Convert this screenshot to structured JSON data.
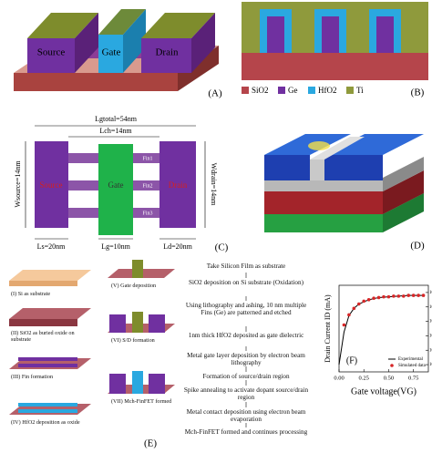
{
  "panels": {
    "A": {
      "label": "(A)",
      "source": "Source",
      "gate": "Gate",
      "drain": "Drain"
    },
    "B": {
      "label": "(B)",
      "legend": [
        "SiO2",
        "Ge",
        "HfO2",
        "Ti"
      ]
    },
    "C": {
      "label": "(C)",
      "total_length": "Lgtotal=54nm",
      "channel_length": "Lch=14nm",
      "source_width": "Wsource=14nm",
      "drain_width": "Wdrain=14nm",
      "source": "Source",
      "gate": "Gate",
      "drain": "Drain",
      "fins": [
        "Fin1",
        "Fin2",
        "Fin3"
      ],
      "source_length": "Ls=20nm",
      "gate_length": "Lg=10nm",
      "drain_length": "Ld=20nm"
    },
    "D": {
      "label": "(D)"
    },
    "E": {
      "label": "(E)",
      "steps": [
        "(I) Si as substrate",
        "(II) SiO2 as buried oxide on substrate",
        "(III) Fin formation",
        "(IV) HfO2 deposition as oxide",
        "(V) Gate deposition",
        "(VI) S/D formation",
        "(VII) Mch-FinFET formed"
      ],
      "flow": [
        "Take Silicon Film as substrate",
        "SiO2 deposition on Si substrate (Oxidation)",
        "Using lithography and ashing, 10 nm multiple Fins (Ge) are patterned and etched",
        "1nm thick HfO2 deposited as gate dielectric",
        "Metal gate layer deposition by electron beam lithography",
        "Formation of source/drain region",
        "Spike annealing to activate dopant source/drain region",
        "Metal contact deposition using electron beam evaporation",
        "Mch-FinFET formed and continues processing"
      ]
    }
  },
  "chart_data": {
    "type": "line",
    "label": "(F)",
    "x_label": "Gate voltage(VG)",
    "y_label": "Drain Current ID (mA)",
    "y_scale": "log",
    "legend": "lower right",
    "xlim": [
      0,
      0.9
    ],
    "xticks": [
      {
        "value": 0,
        "label": "0.00"
      },
      {
        "value": 0.25,
        "label": "0.25"
      },
      {
        "value": 0.5,
        "label": "0.50"
      },
      {
        "value": 0.75,
        "label": "0.75"
      }
    ],
    "ylim": [
      5.01e-08,
      7.94e-07
    ],
    "yticks": [
      {
        "value": 6.31e-07,
        "label": "10⁻⁶·²"
      },
      {
        "value": 3.98e-07,
        "label": "10⁻⁶·⁴"
      },
      {
        "value": 2.51e-07,
        "label": "10⁻⁶·⁶"
      },
      {
        "value": 1.58e-07,
        "label": "10⁻⁶·⁸"
      },
      {
        "value": 1e-07,
        "label": "10⁻⁷·⁰"
      },
      {
        "value": 6.31e-08,
        "label": "10⁻⁷·²"
      }
    ],
    "series": [
      {
        "name": "Experimental",
        "color": "#000000",
        "style": "line",
        "x": [
          0,
          0.05,
          0.1,
          0.15,
          0.2,
          0.3,
          0.4,
          0.5,
          0.6,
          0.7,
          0.85
        ],
        "values": [
          6.31e-08,
          1.78e-07,
          3.02e-07,
          3.8e-07,
          4.37e-07,
          5.01e-07,
          5.37e-07,
          5.5e-07,
          5.62e-07,
          5.75e-07,
          5.75e-07
        ]
      },
      {
        "name": "Simulated data",
        "color": "#d62728",
        "style": "markers",
        "x": [
          0.05,
          0.1,
          0.15,
          0.2,
          0.25,
          0.3,
          0.35,
          0.4,
          0.45,
          0.5,
          0.55,
          0.6,
          0.65,
          0.7,
          0.75,
          0.8,
          0.85
        ],
        "values": [
          2.24e-07,
          3.09e-07,
          3.8e-07,
          4.37e-07,
          4.79e-07,
          5.01e-07,
          5.25e-07,
          5.37e-07,
          5.5e-07,
          5.5e-07,
          5.62e-07,
          5.62e-07,
          5.62e-07,
          5.75e-07,
          5.75e-07,
          5.75e-07,
          5.75e-07
        ]
      }
    ]
  }
}
